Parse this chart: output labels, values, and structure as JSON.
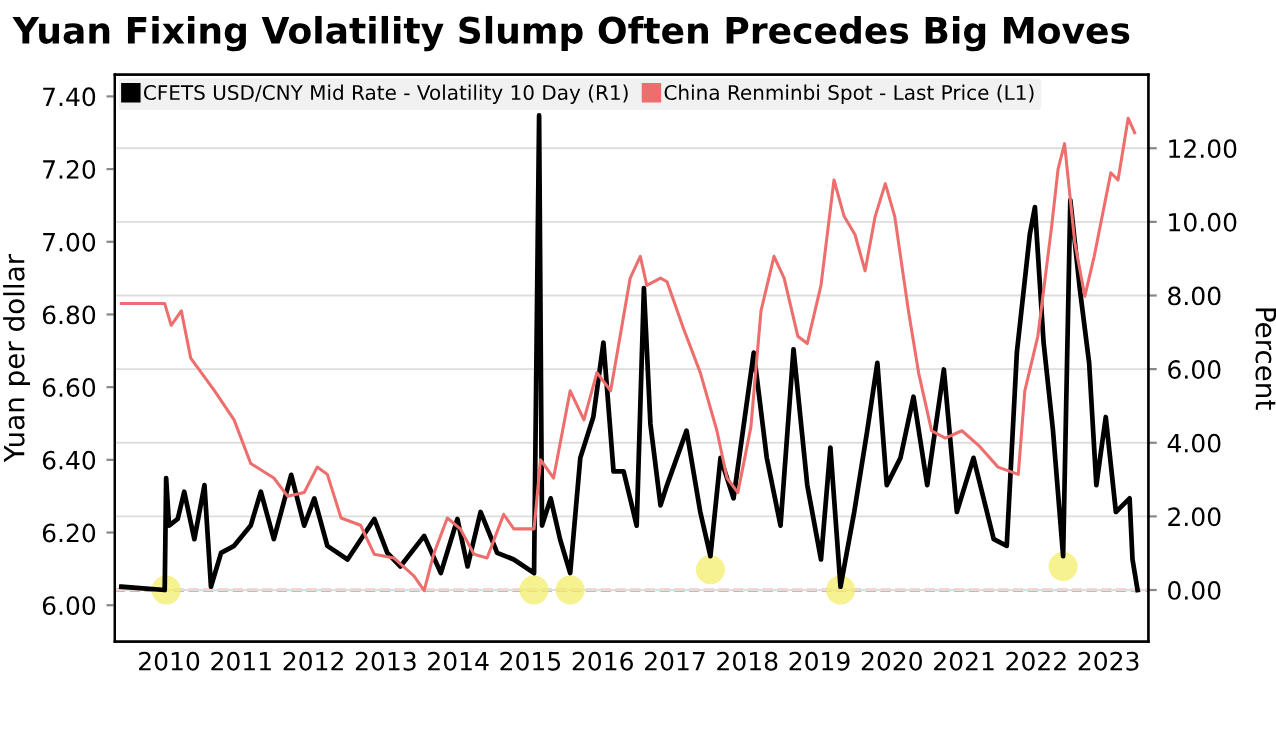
{
  "chart_data": {
    "type": "line",
    "title": "Yuan Fixing Volatility Slump Often Precedes Big Moves",
    "ylabel": "Yuan per dollar",
    "y2label": "Percent",
    "xlim": [
      2009.75,
      2024.05
    ],
    "xticks": [
      {
        "value": 2010.5,
        "label": "2010"
      },
      {
        "value": 2011.5,
        "label": "2011"
      },
      {
        "value": 2012.5,
        "label": "2012"
      },
      {
        "value": 2013.5,
        "label": "2013"
      },
      {
        "value": 2014.5,
        "label": "2014"
      },
      {
        "value": 2015.5,
        "label": "2015"
      },
      {
        "value": 2016.5,
        "label": "2016"
      },
      {
        "value": 2017.5,
        "label": "2017"
      },
      {
        "value": 2018.5,
        "label": "2018"
      },
      {
        "value": 2019.5,
        "label": "2019"
      },
      {
        "value": 2020.5,
        "label": "2020"
      },
      {
        "value": 2021.5,
        "label": "2021"
      },
      {
        "value": 2022.5,
        "label": "2022"
      },
      {
        "value": 2023.5,
        "label": "2023"
      }
    ],
    "ylim": [
      5.9,
      7.46
    ],
    "yticks": [
      {
        "value": 6.0,
        "label": "6.00"
      },
      {
        "value": 6.2,
        "label": "6.20"
      },
      {
        "value": 6.4,
        "label": "6.40"
      },
      {
        "value": 6.6,
        "label": "6.60"
      },
      {
        "value": 6.8,
        "label": "6.80"
      },
      {
        "value": 7.0,
        "label": "7.00"
      },
      {
        "value": 7.2,
        "label": "7.20"
      },
      {
        "value": 7.4,
        "label": "7.40"
      }
    ],
    "y2lim": [
      -1.4,
      14
    ],
    "y2ticks": [
      {
        "value": 0,
        "label": "0.00"
      },
      {
        "value": 2,
        "label": "2.00"
      },
      {
        "value": 4,
        "label": "4.00"
      },
      {
        "value": 6,
        "label": "6.00"
      },
      {
        "value": 8,
        "label": "8.00"
      },
      {
        "value": 10,
        "label": "10.00"
      },
      {
        "value": 12,
        "label": "12.00"
      }
    ],
    "grid": "y",
    "legend": "top left",
    "ref_lines": [
      {
        "axis": "y2",
        "value": 0,
        "color": "#e0505a",
        "line_style": "dashed"
      }
    ],
    "series": [
      {
        "name": "CFETS USD/CNY Mid Rate - Volatility 10 Day (R1)",
        "color": "#000000",
        "axis": "y2",
        "x": [
          2009.84,
          2010.44,
          2010.46,
          2010.5,
          2010.62,
          2010.71,
          2010.85,
          2010.99,
          2011.08,
          2011.22,
          2011.4,
          2011.63,
          2011.77,
          2011.95,
          2012.19,
          2012.37,
          2012.51,
          2012.69,
          2012.97,
          2013.34,
          2013.52,
          2013.7,
          2014.03,
          2014.26,
          2014.49,
          2014.63,
          2014.81,
          2015.04,
          2015.27,
          2015.55,
          2015.62,
          2015.66,
          2015.78,
          2015.91,
          2016.05,
          2016.19,
          2016.37,
          2016.51,
          2016.65,
          2016.79,
          2016.97,
          2017.07,
          2017.16,
          2017.3,
          2017.39,
          2017.66,
          2017.85,
          2017.99,
          2018.13,
          2018.31,
          2018.59,
          2018.77,
          2018.96,
          2019.14,
          2019.33,
          2019.52,
          2019.65,
          2019.79,
          2019.98,
          2020.16,
          2020.3,
          2020.43,
          2020.62,
          2020.8,
          2020.99,
          2021.22,
          2021.4,
          2021.63,
          2021.91,
          2022.09,
          2022.23,
          2022.41,
          2022.48,
          2022.6,
          2022.73,
          2022.87,
          2022.97,
          2023.1,
          2023.23,
          2023.33,
          2023.46,
          2023.6,
          2023.79,
          2023.83,
          2023.9
        ],
        "values": [
          0.09,
          0,
          3.04,
          1.75,
          1.93,
          2.67,
          1.38,
          2.85,
          0.09,
          1.01,
          1.2,
          1.75,
          2.67,
          1.38,
          3.13,
          1.75,
          2.49,
          1.2,
          0.83,
          1.93,
          1.01,
          0.64,
          1.47,
          0.46,
          1.93,
          0.64,
          2.12,
          1.01,
          0.83,
          0.46,
          12.89,
          1.75,
          2.49,
          1.38,
          0.46,
          3.59,
          4.7,
          6.72,
          3.22,
          3.22,
          1.75,
          8.2,
          4.51,
          2.3,
          2.85,
          4.33,
          2.12,
          0.92,
          3.59,
          2.49,
          6.45,
          3.59,
          1.75,
          6.54,
          2.85,
          0.83,
          3.87,
          0.09,
          2.12,
          4.33,
          6.17,
          2.85,
          3.59,
          5.25,
          2.85,
          5.99,
          2.12,
          3.59,
          1.38,
          1.2,
          6.45,
          9.67,
          10.4,
          6.72,
          4.33,
          0.92,
          10.59,
          8.2,
          6.17,
          2.85,
          4.7,
          2.12,
          2.49,
          0.83,
          0
        ]
      },
      {
        "name": "China Renminbi Spot - Last Price (L1)",
        "color": "#ee6e6e",
        "x": [
          2009.84,
          2010.44,
          2010.53,
          2010.67,
          2010.8,
          2011.13,
          2011.4,
          2011.63,
          2011.95,
          2012.14,
          2012.37,
          2012.55,
          2012.69,
          2012.88,
          2013.15,
          2013.34,
          2013.61,
          2013.89,
          2014.03,
          2014.16,
          2014.35,
          2014.53,
          2014.72,
          2014.9,
          2015.13,
          2015.27,
          2015.55,
          2015.64,
          2015.82,
          2016.05,
          2016.24,
          2016.42,
          2016.61,
          2016.88,
          2017.02,
          2017.11,
          2017.3,
          2017.39,
          2017.62,
          2017.85,
          2018.08,
          2018.22,
          2018.37,
          2018.55,
          2018.69,
          2018.87,
          2019.01,
          2019.2,
          2019.33,
          2019.52,
          2019.7,
          2019.84,
          2019.99,
          2020.13,
          2020.27,
          2020.41,
          2020.54,
          2020.73,
          2020.87,
          2021.05,
          2021.24,
          2021.47,
          2021.7,
          2021.97,
          2022.25,
          2022.34,
          2022.52,
          2022.71,
          2022.8,
          2022.89,
          2023.03,
          2023.17,
          2023.3,
          2023.53,
          2023.63,
          2023.77,
          2023.86
        ],
        "values": [
          6.83,
          6.83,
          6.77,
          6.81,
          6.68,
          6.59,
          6.51,
          6.39,
          6.35,
          6.3,
          6.31,
          6.38,
          6.36,
          6.24,
          6.22,
          6.14,
          6.13,
          6.08,
          6.04,
          6.14,
          6.24,
          6.21,
          6.14,
          6.13,
          6.25,
          6.21,
          6.21,
          6.4,
          6.35,
          6.59,
          6.51,
          6.64,
          6.59,
          6.9,
          6.96,
          6.88,
          6.9,
          6.89,
          6.76,
          6.64,
          6.48,
          6.35,
          6.31,
          6.49,
          6.81,
          6.96,
          6.9,
          6.74,
          6.72,
          6.88,
          7.17,
          7.07,
          7.02,
          6.92,
          7.07,
          7.16,
          7.07,
          6.81,
          6.64,
          6.48,
          6.46,
          6.48,
          6.44,
          6.38,
          6.36,
          6.59,
          6.74,
          7.04,
          7.2,
          7.27,
          7.0,
          6.85,
          6.96,
          7.19,
          7.17,
          7.34,
          7.3
        ]
      },
      {
        "type": "scatter",
        "color": "#f2ee6a",
        "axis": "y2",
        "x": [
          2010.46,
          2015.55,
          2016.05,
          2017.99,
          2019.79,
          2022.87
        ],
        "values": [
          0,
          0,
          0,
          0.55,
          0,
          0.64
        ]
      }
    ]
  }
}
